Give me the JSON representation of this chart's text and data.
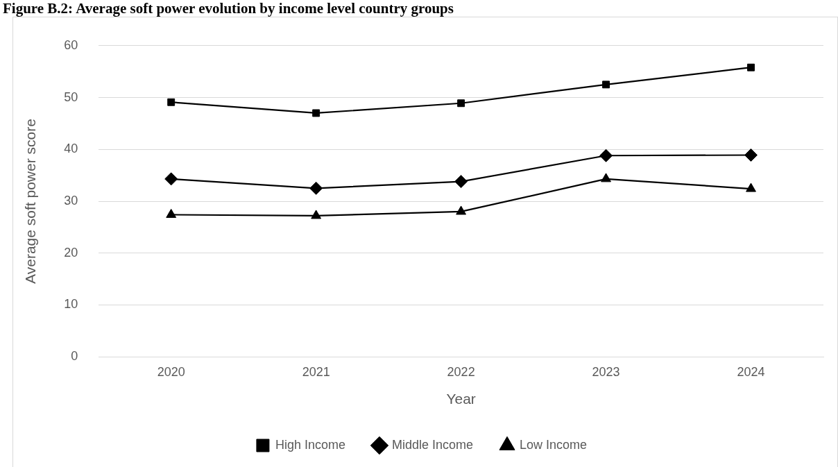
{
  "chart_data": {
    "type": "line",
    "title": "Figure B.2: Average soft power evolution by income level country groups",
    "xlabel": "Year",
    "ylabel": "Average soft power score",
    "categories": [
      "2020",
      "2021",
      "2022",
      "2023",
      "2024"
    ],
    "series": [
      {
        "name": "High Income",
        "color": "#000000",
        "marker": "square",
        "values": [
          49.1,
          47.0,
          48.9,
          52.5,
          55.8
        ]
      },
      {
        "name": "Middle Income",
        "color": "#000000",
        "marker": "diamond",
        "values": [
          34.3,
          32.5,
          33.8,
          38.8,
          38.9
        ]
      },
      {
        "name": "Low Income",
        "color": "#000000",
        "marker": "triangle",
        "values": [
          27.4,
          27.2,
          28.0,
          34.3,
          32.4
        ]
      }
    ],
    "ylim": [
      0,
      60
    ],
    "yticks": [
      0,
      10,
      20,
      30,
      40,
      50,
      60
    ],
    "grid": "y",
    "legend": "bottom",
    "line_style": "solid"
  }
}
